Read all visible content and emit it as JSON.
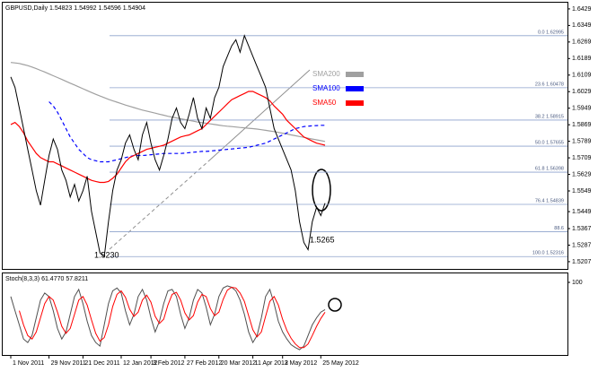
{
  "chart_data": [
    {
      "type": "line",
      "title": "GBPUSD,Daily  1.54823 1.54992 1.54596 1.54904",
      "categories": [
        "1 Nov 2011",
        null,
        null,
        null,
        null,
        null,
        null,
        null,
        null,
        "29 Nov 2011",
        null,
        null,
        null,
        null,
        null,
        null,
        null,
        "21 Dec 2011",
        null,
        null,
        null,
        null,
        null,
        null,
        null,
        null,
        "12 Jan 2012",
        null,
        null,
        null,
        null,
        null,
        null,
        "3 Feb 2012",
        null,
        null,
        null,
        null,
        null,
        null,
        null,
        "27 Feb 2012",
        null,
        null,
        null,
        null,
        null,
        null,
        null,
        "20 Mar 2012",
        null,
        null,
        null,
        null,
        null,
        null,
        null,
        "11 Apr 2012",
        null,
        null,
        null,
        null,
        null,
        null,
        "3 May 2012",
        null,
        null,
        null,
        null,
        null,
        null,
        null,
        null,
        "25 May 2012",
        null
      ],
      "color": "#000000",
      "values": [
        1.61,
        1.605,
        1.595,
        1.585,
        1.575,
        1.565,
        1.555,
        1.548,
        1.56,
        1.572,
        1.58,
        1.575,
        1.565,
        1.56,
        1.552,
        1.558,
        1.55,
        1.555,
        1.562,
        1.545,
        1.535,
        1.525,
        1.523,
        1.54,
        1.555,
        1.565,
        1.57,
        1.578,
        1.582,
        1.575,
        1.57,
        1.582,
        1.588,
        1.578,
        1.57,
        1.565,
        1.572,
        1.58,
        1.59,
        1.595,
        1.588,
        1.585,
        1.592,
        1.6,
        1.59,
        1.585,
        1.595,
        1.59,
        1.6,
        1.605,
        1.615,
        1.62,
        1.625,
        1.628,
        1.622,
        1.63,
        1.625,
        1.62,
        1.615,
        1.61,
        1.605,
        1.595,
        1.585,
        1.58,
        1.575,
        1.57,
        1.565,
        1.555,
        1.54,
        1.53,
        1.5265,
        1.54,
        1.547,
        1.543,
        1.549
      ],
      "series": [
        {
          "name": "SMA200",
          "color": "#a0a0a0",
          "values": [
            1.617,
            1.6168,
            1.6165,
            1.616,
            1.6155,
            1.6148,
            1.614,
            1.6132,
            1.6124,
            1.6115,
            1.6106,
            1.6097,
            1.6088,
            1.6079,
            1.607,
            1.6061,
            1.6052,
            1.6043,
            1.6034,
            1.6025,
            1.6016,
            1.6008,
            1.6,
            1.5992,
            1.5985,
            1.5978,
            1.5971,
            1.5964,
            1.5958,
            1.5952,
            1.5946,
            1.594,
            1.5935,
            1.593,
            1.5925,
            1.592,
            1.5915,
            1.591,
            1.5906,
            1.5902,
            1.5898,
            1.5894,
            1.589,
            1.5886,
            1.5882,
            1.5879,
            1.5876,
            1.5873,
            1.587,
            1.5867,
            1.5864,
            1.5862,
            1.586,
            1.5858,
            1.5856,
            1.5854,
            1.5852,
            1.585,
            1.5848,
            1.5845,
            1.5842,
            1.5839,
            1.5836,
            1.5832,
            1.5828,
            1.5824,
            1.582,
            1.5816,
            1.5812,
            1.5808,
            1.5804,
            1.58,
            1.5796,
            1.5792,
            1.5788
          ]
        },
        {
          "name": "SMA100",
          "color": "#0000ff",
          "dashed": true,
          "values": [
            null,
            null,
            null,
            null,
            null,
            null,
            null,
            null,
            null,
            1.598,
            1.596,
            1.593,
            1.589,
            1.585,
            1.581,
            1.578,
            1.575,
            1.573,
            1.571,
            1.57,
            1.5695,
            1.569,
            1.569,
            1.569,
            1.5695,
            1.57,
            1.5705,
            1.571,
            1.5715,
            1.572,
            1.572,
            1.572,
            1.5722,
            1.5724,
            1.5726,
            1.5728,
            1.573,
            1.573,
            1.573,
            1.573,
            1.573,
            1.5732,
            1.5734,
            1.5736,
            1.5738,
            1.574,
            1.574,
            1.5742,
            1.5744,
            1.5746,
            1.5748,
            1.575,
            1.5752,
            1.5754,
            1.5756,
            1.5758,
            1.576,
            1.5765,
            1.577,
            1.5775,
            1.578,
            1.579,
            1.58,
            1.581,
            1.582,
            1.583,
            1.584,
            1.585,
            1.5855,
            1.586,
            1.5862,
            1.5864,
            1.5865,
            1.5866,
            1.5866
          ]
        },
        {
          "name": "SMA50",
          "color": "#ff0000",
          "values": [
            1.587,
            1.588,
            1.586,
            1.583,
            1.579,
            1.576,
            1.573,
            1.571,
            1.57,
            1.569,
            1.569,
            1.568,
            1.567,
            1.566,
            1.565,
            1.564,
            1.563,
            1.562,
            1.561,
            1.56,
            1.5595,
            1.559,
            1.559,
            1.5595,
            1.561,
            1.563,
            1.566,
            1.569,
            1.571,
            1.572,
            1.573,
            1.574,
            1.575,
            1.5755,
            1.576,
            1.5765,
            1.577,
            1.578,
            1.579,
            1.58,
            1.581,
            1.5815,
            1.582,
            1.583,
            1.584,
            1.585,
            1.587,
            1.589,
            1.591,
            1.593,
            1.595,
            1.597,
            1.599,
            1.6,
            1.601,
            1.602,
            1.603,
            1.603,
            1.602,
            1.601,
            1.6,
            1.5985,
            1.596,
            1.594,
            1.592,
            1.589,
            1.587,
            1.585,
            1.583,
            1.581,
            1.58,
            1.579,
            1.578,
            1.5775,
            1.577
          ]
        }
      ],
      "ylim": [
        1.5172,
        1.6459
      ],
      "yticks": [
        1.6429,
        1.6349,
        1.6269,
        1.6189,
        1.6109,
        1.6029,
        1.5949,
        1.5869,
        1.5789,
        1.5709,
        1.5629,
        1.5549,
        1.5449,
        1.5367,
        1.5287,
        1.5207
      ],
      "fib_levels": [
        {
          "value": 1.62995,
          "label": "0.0  1.62995"
        },
        {
          "value": 1.60478,
          "label": "23.6  1.60478"
        },
        {
          "value": 1.58915,
          "label": "38.2  1.58915"
        },
        {
          "value": 1.57655,
          "label": "50.0  1.57655"
        },
        {
          "value": 1.56398,
          "label": "61.8  1.56398"
        },
        {
          "value": 1.54839,
          "label": "76.4  1.54839"
        },
        {
          "value": 1.5352,
          "label": "88.6"
        },
        {
          "value": 1.52316,
          "label": "100.0  1.52316"
        }
      ],
      "annotations": [
        "1.5230",
        "1.5265"
      ]
    },
    {
      "type": "line",
      "title": "Stoch(8,3,3) 61.4770 57.8211",
      "color": "#505050",
      "values": [
        80,
        60,
        40,
        20,
        15,
        25,
        50,
        75,
        85,
        80,
        60,
        35,
        20,
        30,
        55,
        80,
        90,
        70,
        45,
        25,
        15,
        10,
        40,
        70,
        88,
        92,
        85,
        60,
        40,
        55,
        80,
        90,
        75,
        50,
        30,
        45,
        70,
        88,
        90,
        80,
        55,
        35,
        50,
        75,
        90,
        85,
        65,
        40,
        55,
        80,
        92,
        95,
        93,
        88,
        75,
        55,
        30,
        15,
        25,
        50,
        80,
        90,
        70,
        45,
        30,
        20,
        12,
        8,
        5,
        10,
        25,
        40,
        50,
        58,
        61.477
      ],
      "signal_color": "#ff0000",
      "signal": [
        null,
        null,
        60,
        40,
        25,
        20,
        30,
        50,
        70,
        80,
        75,
        58,
        38,
        28,
        35,
        55,
        75,
        80,
        68,
        47,
        28,
        17,
        22,
        40,
        66,
        83,
        88,
        79,
        62,
        52,
        58,
        75,
        82,
        72,
        52,
        42,
        48,
        68,
        83,
        86,
        75,
        57,
        47,
        53,
        72,
        83,
        80,
        63,
        53,
        58,
        76,
        89,
        93,
        92,
        85,
        73,
        53,
        33,
        23,
        30,
        52,
        73,
        80,
        68,
        48,
        32,
        21,
        13,
        8,
        8,
        13,
        25,
        38,
        49,
        57.8211
      ],
      "ylim": [
        0,
        100
      ],
      "yticks": [
        100
      ]
    }
  ]
}
